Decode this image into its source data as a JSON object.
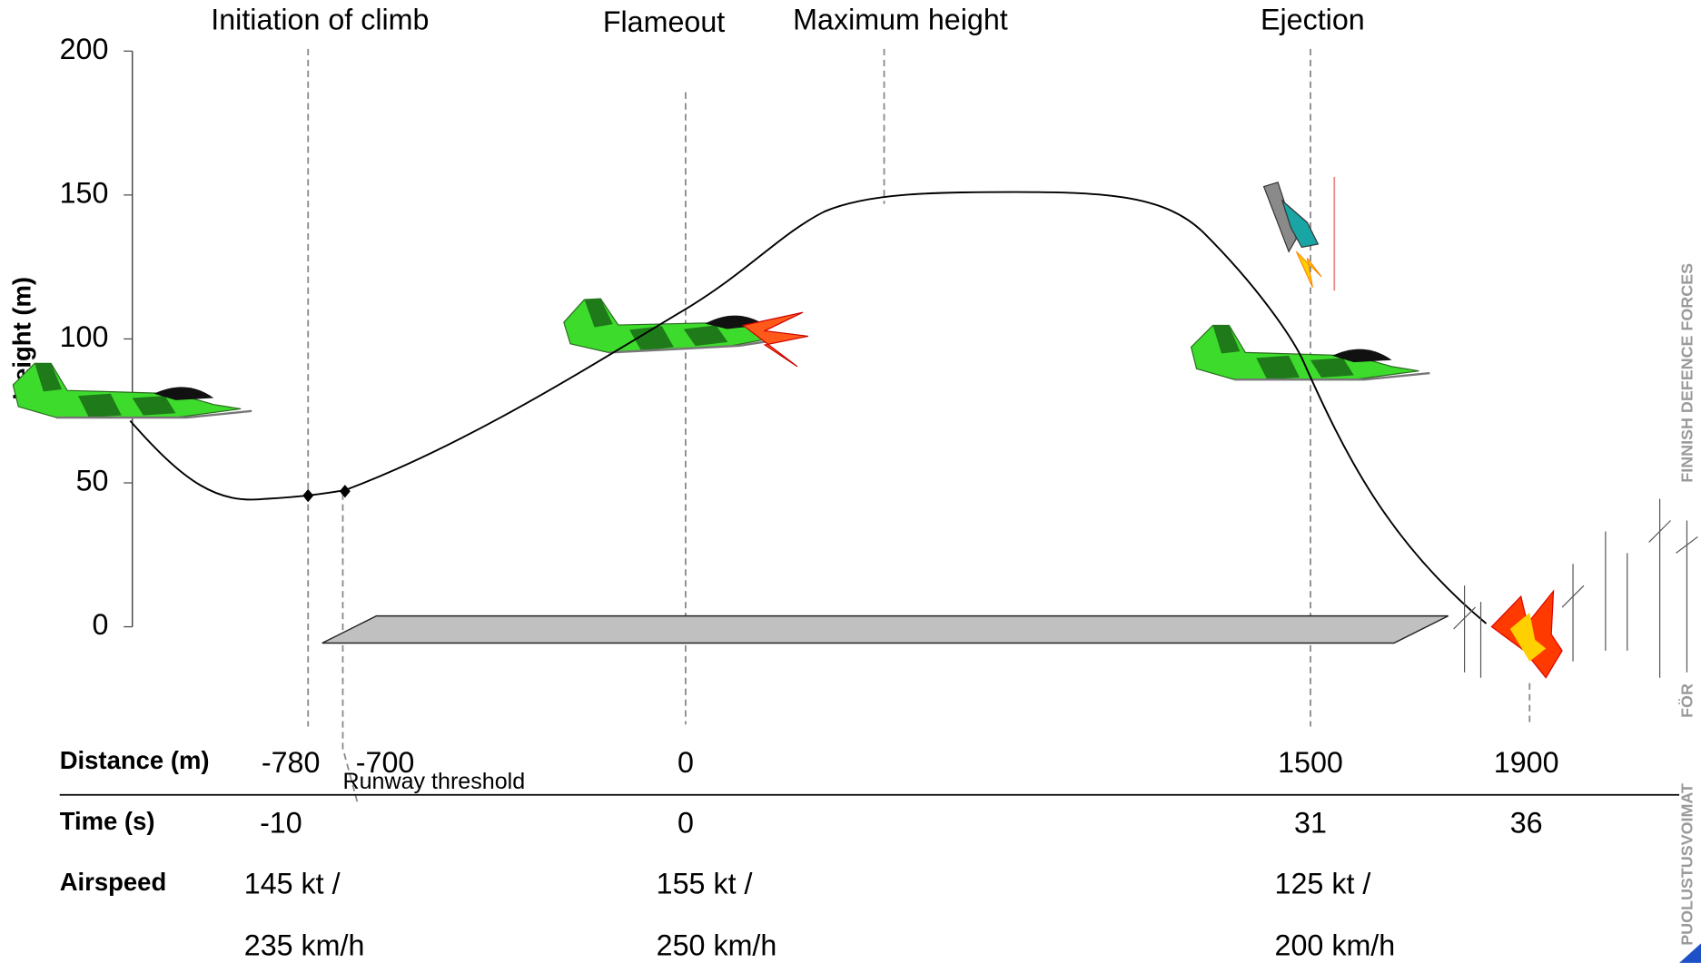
{
  "y_axis": {
    "label": "Height (m)",
    "ticks": [
      0,
      50,
      100,
      150,
      200
    ]
  },
  "events": [
    "Initiation of climb",
    "Flameout",
    "Maximum height",
    "Ejection"
  ],
  "runway_label": "Runway threshold",
  "table": {
    "rows": [
      {
        "label": "Distance (m)",
        "cells": [
          "-780",
          "-700",
          "0",
          "1500",
          "1900"
        ]
      },
      {
        "label": "Time (s)",
        "cells": [
          "-10",
          "0",
          "31",
          "36"
        ]
      },
      {
        "label": "Airspeed",
        "cells": [
          "145 kt /",
          "155 kt /",
          "125 kt /"
        ],
        "cells_line2": [
          "235 km/h",
          "250 km/h",
          "200 km/h"
        ]
      }
    ]
  },
  "watermark": [
    "PUOLUSTUSVOIMAT",
    "FÖR",
    "FINNISH DEFENCE FORCES"
  ]
}
